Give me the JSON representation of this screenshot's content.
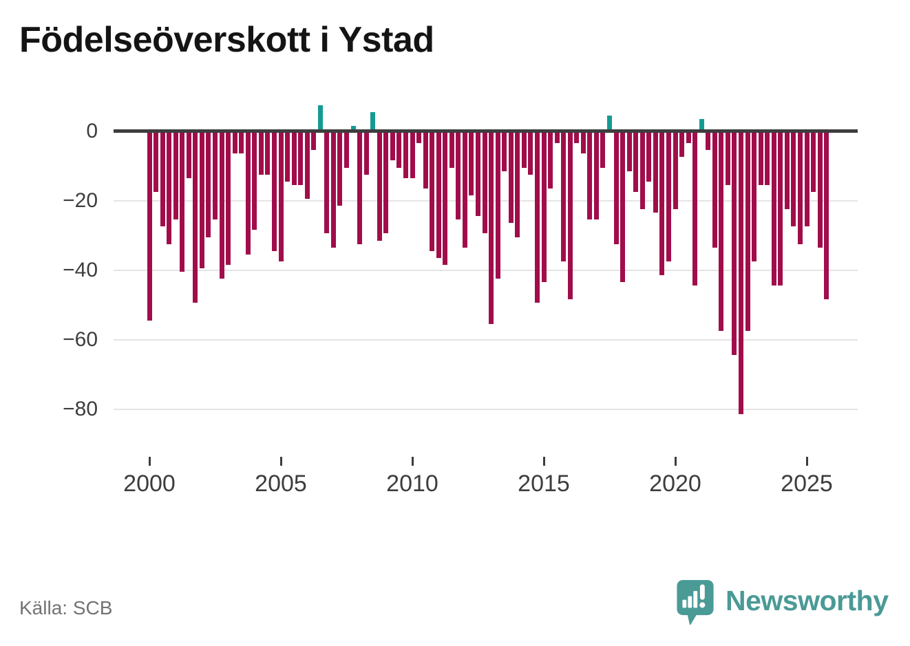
{
  "title": "Födelseöverskott i Ystad",
  "source": "Källa: SCB",
  "branding": {
    "name": "Newsworthy",
    "logo_icon": "speech-bubble-bar-chart-icon"
  },
  "colors": {
    "negative_bar": "#a10d4b",
    "positive_bar": "#169b93",
    "zero_line": "#3d3d3d",
    "gridline": "#e4e4e4",
    "axis_text": "#3d3d3d",
    "title_text": "#141414",
    "source_text": "#737373",
    "brand_teal": "#4a9a96",
    "background": "#ffffff"
  },
  "chart_data": {
    "type": "bar",
    "title": "Födelseöverskott i Ystad",
    "frequency": "quarterly",
    "xlabel": "",
    "ylabel": "",
    "legend": "none",
    "grid": "horizontal",
    "x_axis_range": [
      "2000 Q1",
      "2025 Q4"
    ],
    "y_axis_range": [
      10,
      -88
    ],
    "y_ticks": {
      "values": [
        0,
        -20,
        -40,
        -60,
        -80
      ],
      "labels": [
        "0",
        "−20",
        "−40",
        "−60",
        "−80"
      ]
    },
    "x_ticks": {
      "values": [
        2000,
        2005,
        2010,
        2015,
        2020,
        2025
      ],
      "labels": [
        "2000",
        "2005",
        "2010",
        "2015",
        "2020",
        "2025"
      ]
    },
    "categories": [
      "2000 Q1",
      "2000 Q2",
      "2000 Q3",
      "2000 Q4",
      "2001 Q1",
      "2001 Q2",
      "2001 Q3",
      "2001 Q4",
      "2002 Q1",
      "2002 Q2",
      "2002 Q3",
      "2002 Q4",
      "2003 Q1",
      "2003 Q2",
      "2003 Q3",
      "2003 Q4",
      "2004 Q1",
      "2004 Q2",
      "2004 Q3",
      "2004 Q4",
      "2005 Q1",
      "2005 Q2",
      "2005 Q3",
      "2005 Q4",
      "2006 Q1",
      "2006 Q2",
      "2006 Q3",
      "2006 Q4",
      "2007 Q1",
      "2007 Q2",
      "2007 Q3",
      "2007 Q4",
      "2008 Q1",
      "2008 Q2",
      "2008 Q3",
      "2008 Q4",
      "2009 Q1",
      "2009 Q2",
      "2009 Q3",
      "2009 Q4",
      "2010 Q1",
      "2010 Q2",
      "2010 Q3",
      "2010 Q4",
      "2011 Q1",
      "2011 Q2",
      "2011 Q3",
      "2011 Q4",
      "2012 Q1",
      "2012 Q2",
      "2012 Q3",
      "2012 Q4",
      "2013 Q1",
      "2013 Q2",
      "2013 Q3",
      "2013 Q4",
      "2014 Q1",
      "2014 Q2",
      "2014 Q3",
      "2014 Q4",
      "2015 Q1",
      "2015 Q2",
      "2015 Q3",
      "2015 Q4",
      "2016 Q1",
      "2016 Q2",
      "2016 Q3",
      "2016 Q4",
      "2017 Q1",
      "2017 Q2",
      "2017 Q3",
      "2017 Q4",
      "2018 Q1",
      "2018 Q2",
      "2018 Q3",
      "2018 Q4",
      "2019 Q1",
      "2019 Q2",
      "2019 Q3",
      "2019 Q4",
      "2020 Q1",
      "2020 Q2",
      "2020 Q3",
      "2020 Q4",
      "2021 Q1",
      "2021 Q2",
      "2021 Q3",
      "2021 Q4",
      "2022 Q1",
      "2022 Q2",
      "2022 Q3",
      "2022 Q4",
      "2023 Q1",
      "2023 Q2",
      "2023 Q3",
      "2023 Q4",
      "2024 Q1",
      "2024 Q2",
      "2024 Q3",
      "2024 Q4",
      "2025 Q1",
      "2025 Q2",
      "2025 Q3",
      "2025 Q4"
    ],
    "values": [
      -54,
      -17,
      -27,
      -32,
      -25,
      -40,
      -13,
      -49,
      -39,
      -30,
      -25,
      -42,
      -38,
      -6,
      -6,
      -35,
      -28,
      -12,
      -12,
      -34,
      -37,
      -14,
      -15,
      -15,
      -19,
      -5,
      7,
      -29,
      -33,
      -21,
      -10,
      1,
      -32,
      -12,
      5,
      -31,
      -29,
      -8,
      -10,
      -13,
      -13,
      -3,
      -16,
      -34,
      -36,
      -38,
      -10,
      -25,
      -33,
      -18,
      -24,
      -29,
      -55,
      -42,
      -11,
      -26,
      -30,
      -10,
      -12,
      -49,
      -43,
      -16,
      -3,
      -37,
      -48,
      -3,
      -6,
      -25,
      -25,
      -10,
      4,
      -32,
      -43,
      -11,
      -17,
      -22,
      -14,
      -23,
      -41,
      -37,
      -22,
      -7,
      -3,
      -44,
      3,
      -5,
      -33,
      -57,
      -15,
      -64,
      -81,
      -57,
      -37,
      -15,
      -15,
      -44,
      -44,
      -22,
      -27,
      -32,
      -27,
      -17,
      -33,
      -48
    ]
  }
}
